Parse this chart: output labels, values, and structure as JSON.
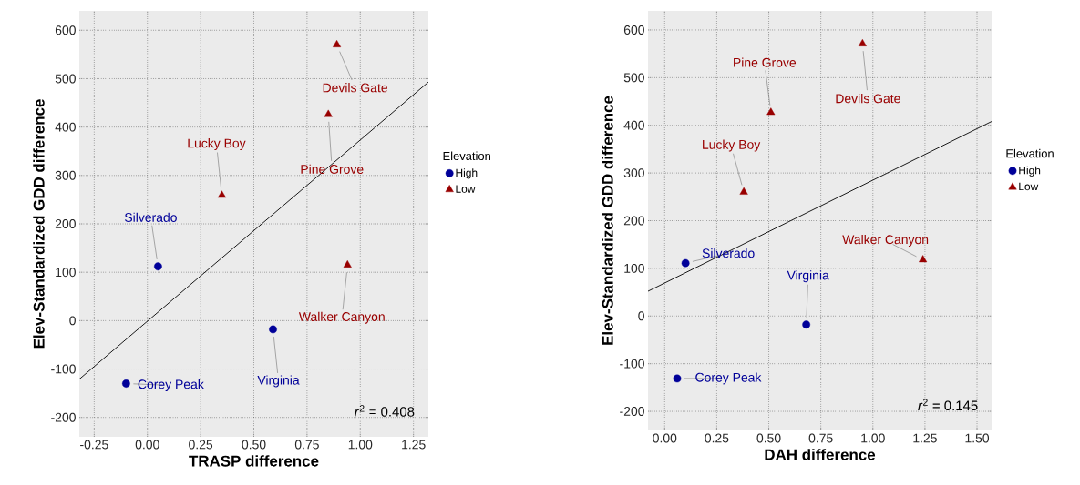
{
  "chart_data": [
    {
      "type": "scatter",
      "xlabel": "TRASP difference",
      "ylabel": "Elev-Standardized GDD difference",
      "legend_title": "Elevation",
      "legend": "right",
      "grid": true,
      "xlim": [
        -0.32,
        1.32
      ],
      "ylim": [
        -240,
        640
      ],
      "xticks": [
        {
          "value": -0.25,
          "label": "-0.25"
        },
        {
          "value": 0,
          "label": "0.00"
        },
        {
          "value": 0.25,
          "label": "0.25"
        },
        {
          "value": 0.5,
          "label": "0.50"
        },
        {
          "value": 0.75,
          "label": "0.75"
        },
        {
          "value": 1,
          "label": "1.00"
        },
        {
          "value": 1.25,
          "label": "1.25"
        }
      ],
      "yticks": [
        -200,
        -100,
        0,
        100,
        200,
        300,
        400,
        500,
        600
      ],
      "series": [
        {
          "name": "High",
          "color": "#000099",
          "marker": "circle",
          "x": [
            0.05,
            0.59,
            -0.1
          ],
          "values": [
            112,
            -18,
            -130
          ]
        },
        {
          "name": "Low",
          "color": "#990000",
          "marker": "triangle",
          "x": [
            0.89,
            0.85,
            0.35,
            0.94
          ],
          "values": [
            570,
            426,
            259,
            115
          ]
        },
        {
          "type": "line",
          "color": "#000000",
          "marker": "none",
          "x": [
            -0.32,
            1.32
          ],
          "values": [
            -121,
            493
          ]
        }
      ],
      "annotations": [
        {
          "text": "Devils Gate",
          "x": 0.89,
          "y": 570
        },
        {
          "text": "Pine Grove",
          "x": 0.85,
          "y": 426
        },
        {
          "text": "Lucky Boy",
          "x": 0.35,
          "y": 259
        },
        {
          "text": "Walker Canyon",
          "x": 0.94,
          "y": 115
        },
        {
          "text": "Silverado",
          "x": 0.05,
          "y": 112
        },
        {
          "text": "Virginia",
          "x": 0.59,
          "y": -18
        },
        {
          "text": "Corey Peak",
          "x": -0.1,
          "y": -130
        },
        "*r*$^{2}$ = 0.408"
      ]
    },
    {
      "type": "scatter",
      "xlabel": "DAH difference",
      "ylabel": "Elev-Standardized GDD difference",
      "legend_title": "Elevation",
      "legend": "right",
      "grid": true,
      "xlim": [
        -0.08,
        1.57
      ],
      "ylim": [
        -240,
        640
      ],
      "xticks": [
        {
          "value": 0,
          "label": "0.00"
        },
        {
          "value": 0.25,
          "label": "0.25"
        },
        {
          "value": 0.5,
          "label": "0.50"
        },
        {
          "value": 0.75,
          "label": "0.75"
        },
        {
          "value": 1,
          "label": "1.00"
        },
        {
          "value": 1.25,
          "label": "1.25"
        },
        {
          "value": 1.5,
          "label": "1.50"
        }
      ],
      "yticks": [
        -200,
        -100,
        0,
        100,
        200,
        300,
        400,
        500,
        600
      ],
      "series": [
        {
          "name": "High",
          "color": "#000099",
          "marker": "circle",
          "x": [
            0.1,
            0.68,
            0.06
          ],
          "values": [
            111,
            -18,
            -131
          ]
        },
        {
          "name": "Low",
          "color": "#990000",
          "marker": "triangle",
          "x": [
            0.95,
            0.51,
            0.38,
            1.24
          ],
          "values": [
            571,
            427,
            260,
            118
          ]
        },
        {
          "type": "line",
          "color": "#000000",
          "marker": "none",
          "x": [
            -0.08,
            1.57
          ],
          "values": [
            52,
            408
          ]
        }
      ],
      "annotations": [
        {
          "text": "Devils Gate",
          "x": 0.95,
          "y": 571
        },
        {
          "text": "Pine Grove",
          "x": 0.51,
          "y": 427
        },
        {
          "text": "Lucky Boy",
          "x": 0.38,
          "y": 260
        },
        {
          "text": "Walker Canyon",
          "x": 1.24,
          "y": 118
        },
        {
          "text": "Silverado",
          "x": 0.1,
          "y": 111
        },
        {
          "text": "Virginia",
          "x": 0.68,
          "y": -18
        },
        {
          "text": "Corey Peak",
          "x": 0.06,
          "y": -131
        },
        "*r*$^{2}$ = 0.145"
      ]
    }
  ]
}
